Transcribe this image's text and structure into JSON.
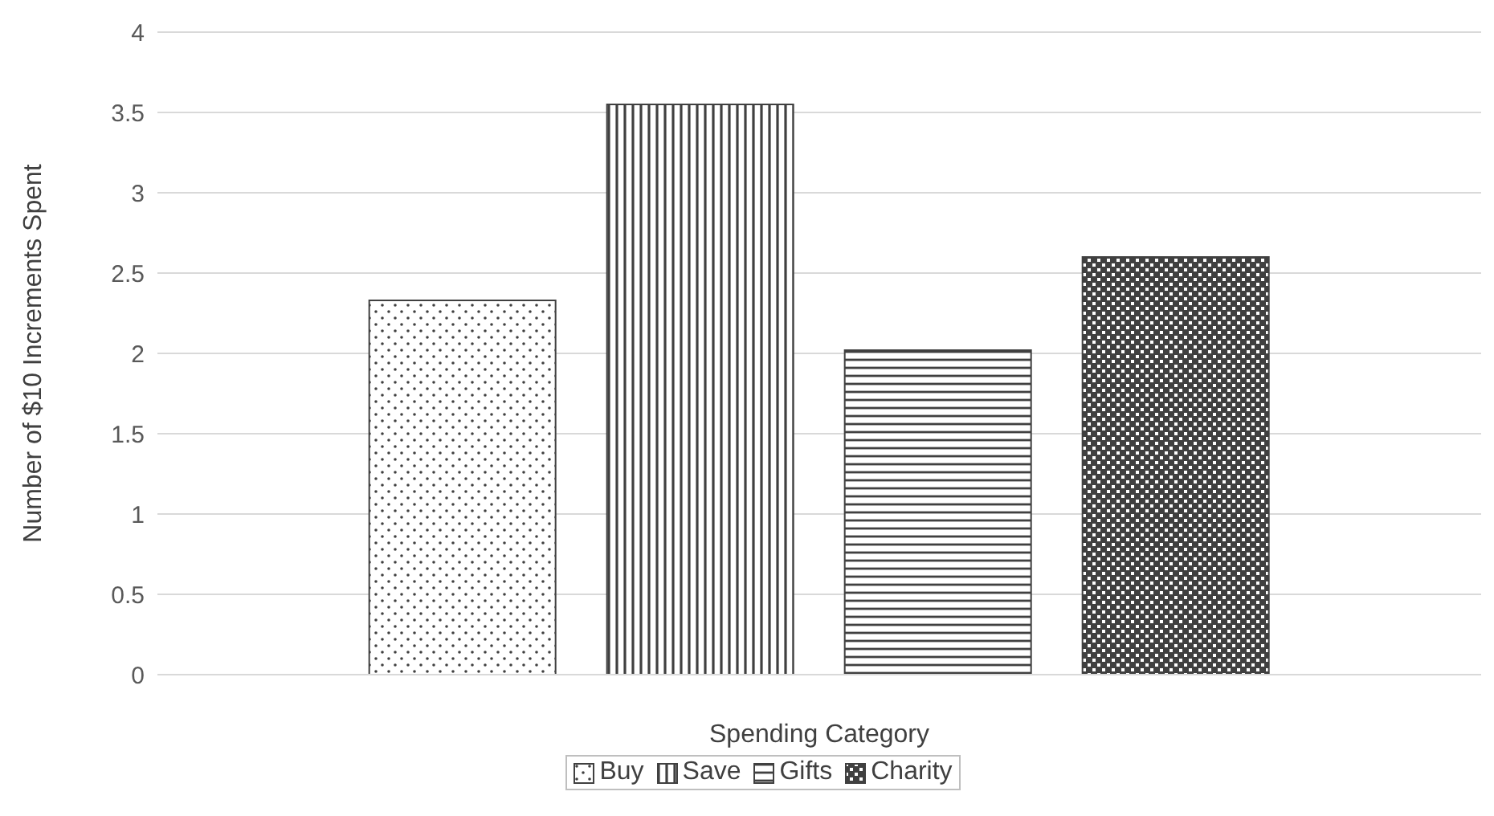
{
  "chart_data": {
    "type": "bar",
    "categories": [
      null
    ],
    "xlabel": "Spending Category",
    "ylabel": "Number of $10 Increments Spent",
    "series": [
      {
        "name": "Buy",
        "color": "#404040",
        "values": [
          2.33
        ]
      },
      {
        "name": "Save",
        "color": "#404040",
        "values": [
          3.55
        ]
      },
      {
        "name": "Gifts",
        "color": "#404040",
        "values": [
          2.02
        ]
      },
      {
        "name": "Charity",
        "color": "#404040",
        "values": [
          2.6
        ]
      }
    ],
    "ylim": [
      0,
      4
    ],
    "yticks": [
      0,
      0.5,
      1,
      1.5,
      2,
      2.5,
      3,
      3.5,
      4
    ],
    "grid": "y",
    "legend": "bottom"
  }
}
